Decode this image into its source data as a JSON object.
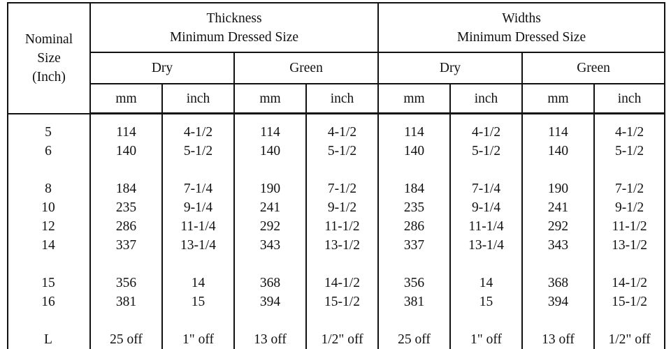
{
  "header": {
    "nominal": [
      "Nominal",
      "Size",
      "(Inch)"
    ],
    "thickness": [
      "Thickness",
      "Minimum Dressed Size"
    ],
    "widths": [
      "Widths",
      "Minimum Dressed Size"
    ],
    "dry": "Dry",
    "green": "Green",
    "mm": "mm",
    "inch": "inch"
  },
  "rows": [
    [
      "5",
      "114",
      "4-1/2",
      "114",
      "4-1/2",
      "114",
      "4-1/2",
      "114",
      "4-1/2"
    ],
    [
      "6",
      "140",
      "5-1/2",
      "140",
      "5-1/2",
      "140",
      "5-1/2",
      "140",
      "5-1/2"
    ],
    [
      "8",
      "184",
      "7-1/4",
      "190",
      "7-1/2",
      "184",
      "7-1/4",
      "190",
      "7-1/2"
    ],
    [
      "10",
      "235",
      "9-1/4",
      "241",
      "9-1/2",
      "235",
      "9-1/4",
      "241",
      "9-1/2"
    ],
    [
      "12",
      "286",
      "11-1/4",
      "292",
      "11-1/2",
      "286",
      "11-1/4",
      "292",
      "11-1/2"
    ],
    [
      "14",
      "337",
      "13-1/4",
      "343",
      "13-1/2",
      "337",
      "13-1/4",
      "343",
      "13-1/2"
    ],
    [
      "15",
      "356",
      "14",
      "368",
      "14-1/2",
      "356",
      "14",
      "368",
      "14-1/2"
    ],
    [
      "16",
      "381",
      "15",
      "394",
      "15-1/2",
      "381",
      "15",
      "394",
      "15-1/2"
    ]
  ],
  "partial_row": [
    "L",
    "25 off",
    "1\" off",
    "13 off",
    "1/2\" off",
    "25 off",
    "1\" off",
    "13 off",
    "1/2\" off"
  ]
}
